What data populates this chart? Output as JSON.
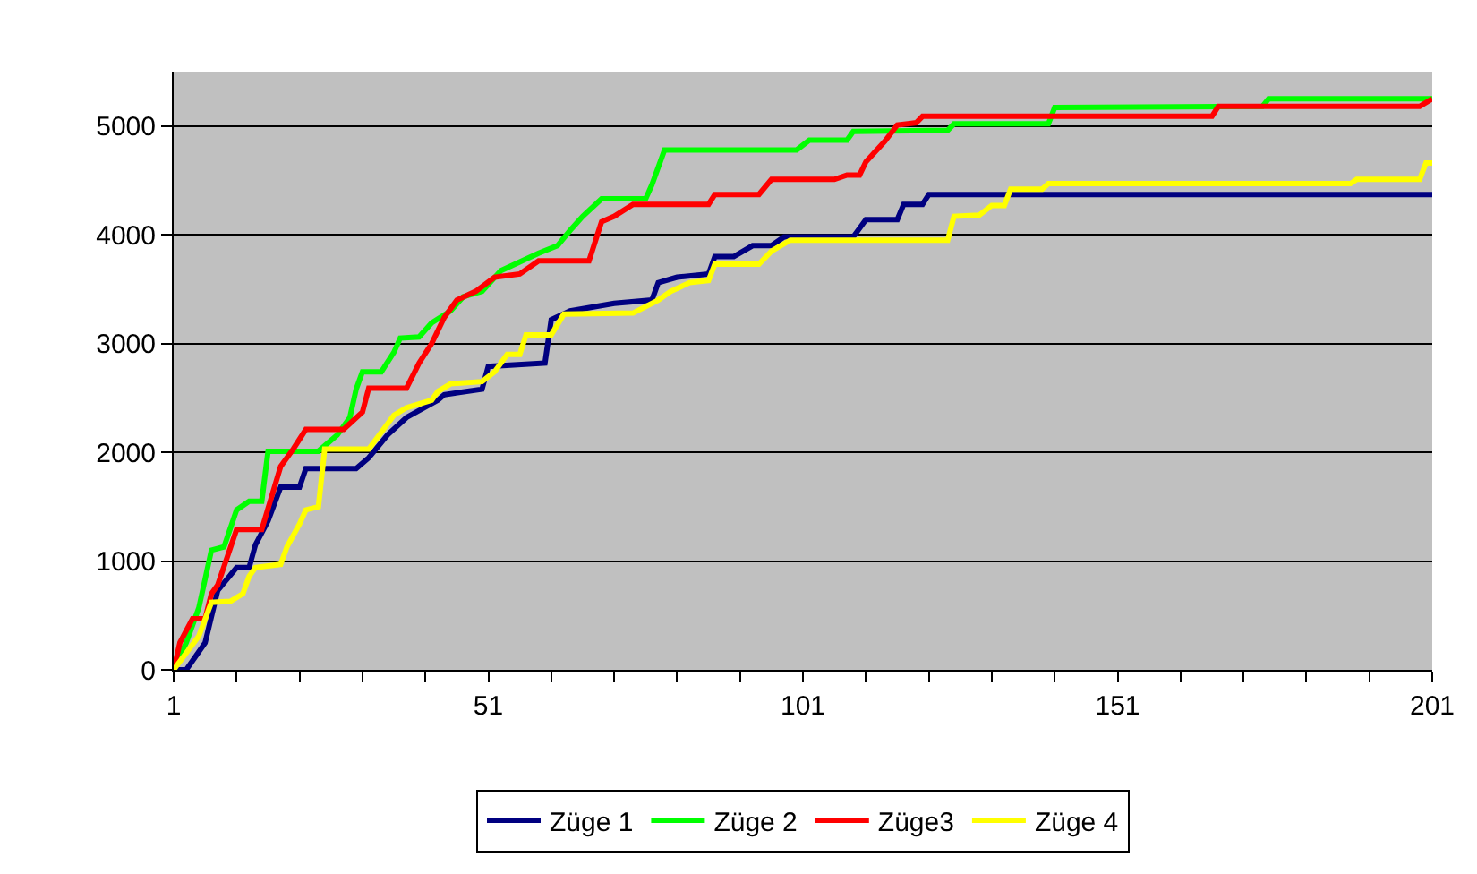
{
  "chart_data": {
    "type": "line",
    "xlim": [
      1,
      201
    ],
    "ylim": [
      0,
      5500
    ],
    "xticks": [
      1,
      {
        "value": 11,
        "label": null
      },
      {
        "value": 21,
        "label": null
      },
      {
        "value": 31,
        "label": null
      },
      {
        "value": 41,
        "label": null
      },
      51,
      {
        "value": 61,
        "label": null
      },
      {
        "value": 71,
        "label": null
      },
      {
        "value": 81,
        "label": null
      },
      {
        "value": 91,
        "label": null
      },
      101,
      {
        "value": 111,
        "label": null
      },
      {
        "value": 121,
        "label": null
      },
      {
        "value": 131,
        "label": null
      },
      {
        "value": 141,
        "label": null
      },
      151,
      {
        "value": 161,
        "label": null
      },
      {
        "value": 171,
        "label": null
      },
      {
        "value": 181,
        "label": null
      },
      {
        "value": 191,
        "label": null
      },
      201
    ],
    "yticks": [
      0,
      1000,
      2000,
      3000,
      4000,
      5000
    ],
    "grid": "y",
    "legend": "bottom",
    "marker": "none",
    "line_style": "solid",
    "series": [
      {
        "name": "Züge 1",
        "color": "#000080",
        "x": [
          1,
          3,
          6,
          8,
          11,
          13,
          14,
          16,
          18,
          21,
          22,
          30,
          32,
          35,
          38,
          43,
          44,
          50,
          51,
          60,
          61,
          64,
          71,
          77,
          78,
          81,
          86,
          87,
          90,
          93,
          96,
          98,
          109,
          111,
          116,
          117,
          120,
          121,
          201
        ],
        "values": [
          0,
          0,
          250,
          730,
          940,
          940,
          1150,
          1370,
          1680,
          1680,
          1850,
          1850,
          1950,
          2160,
          2320,
          2480,
          2530,
          2580,
          2790,
          2820,
          3220,
          3300,
          3370,
          3400,
          3560,
          3610,
          3640,
          3800,
          3800,
          3900,
          3900,
          3980,
          3980,
          4140,
          4140,
          4280,
          4280,
          4370,
          4370
        ]
      },
      {
        "name": "Züge 2",
        "color": "#00ff00",
        "x": [
          1,
          3,
          5,
          7,
          9,
          11,
          13,
          15,
          16,
          24,
          27,
          29,
          30,
          31,
          34,
          36,
          37,
          40,
          42,
          45,
          47,
          50,
          53,
          56,
          59,
          62,
          64,
          66,
          69,
          76,
          77,
          79,
          100,
          102,
          108,
          109,
          124,
          125,
          140,
          141,
          174,
          175,
          201
        ],
        "values": [
          0,
          250,
          570,
          1100,
          1130,
          1470,
          1550,
          1550,
          2010,
          2010,
          2160,
          2320,
          2580,
          2740,
          2740,
          2920,
          3050,
          3060,
          3190,
          3300,
          3430,
          3480,
          3670,
          3750,
          3830,
          3900,
          4040,
          4170,
          4330,
          4330,
          4460,
          4780,
          4780,
          4870,
          4870,
          4950,
          4960,
          5020,
          5020,
          5170,
          5180,
          5250,
          5250
        ]
      },
      {
        "name": "Züge3",
        "color": "#ff0000",
        "x": [
          1,
          2,
          4,
          6,
          7,
          8,
          11,
          15,
          18,
          20,
          22,
          28,
          31,
          32,
          38,
          40,
          42,
          44,
          46,
          49,
          52,
          56,
          59,
          67,
          69,
          71,
          74,
          86,
          87,
          94,
          95,
          96,
          106,
          108,
          110,
          111,
          114,
          116,
          119,
          120,
          166,
          167,
          199,
          201
        ],
        "values": [
          0,
          250,
          470,
          470,
          700,
          780,
          1290,
          1290,
          1870,
          2030,
          2210,
          2210,
          2370,
          2590,
          2590,
          2820,
          3000,
          3240,
          3400,
          3480,
          3610,
          3640,
          3760,
          3760,
          4120,
          4170,
          4280,
          4280,
          4370,
          4370,
          4440,
          4510,
          4510,
          4550,
          4550,
          4670,
          4860,
          5010,
          5030,
          5090,
          5090,
          5180,
          5180,
          5250
        ]
      },
      {
        "name": "Züge 4",
        "color": "#ffff00",
        "x": [
          1,
          5,
          7,
          10,
          12,
          13,
          14,
          18,
          19,
          21,
          22,
          24,
          25,
          32,
          36,
          38,
          42,
          43,
          45,
          50,
          52,
          54,
          56,
          57,
          61,
          63,
          74,
          78,
          80,
          83,
          86,
          87,
          94,
          96,
          99,
          124,
          125,
          129,
          131,
          133,
          134,
          139,
          140,
          188,
          189,
          199,
          200,
          201
        ],
        "values": [
          0,
          310,
          620,
          630,
          700,
          860,
          940,
          970,
          1130,
          1340,
          1470,
          1500,
          2030,
          2030,
          2340,
          2410,
          2480,
          2560,
          2630,
          2650,
          2740,
          2900,
          2900,
          3080,
          3080,
          3270,
          3280,
          3400,
          3480,
          3560,
          3580,
          3730,
          3730,
          3850,
          3950,
          3950,
          4170,
          4180,
          4270,
          4270,
          4420,
          4420,
          4470,
          4470,
          4510,
          4510,
          4660,
          4660
        ]
      }
    ]
  }
}
